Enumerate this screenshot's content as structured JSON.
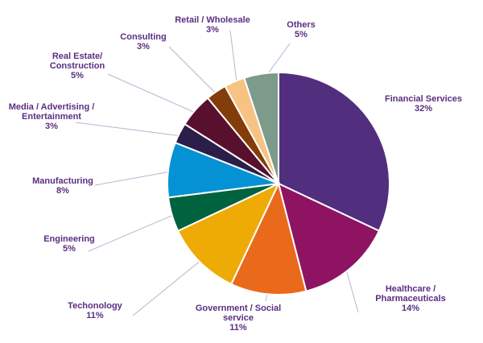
{
  "chart_data": {
    "type": "pie",
    "title": "",
    "slices": [
      {
        "label": "Financial Services",
        "display": [
          "Financial Services",
          "32%"
        ],
        "value": 32,
        "color": "#512e7e"
      },
      {
        "label": "Healthcare / Pharmaceuticals",
        "display": [
          "Healthcare /",
          "Pharmaceuticals",
          "14%"
        ],
        "value": 14,
        "color": "#8e1463"
      },
      {
        "label": "Government / Social service",
        "display": [
          "Government / Social",
          "service",
          "11%"
        ],
        "value": 11,
        "color": "#ea6a1b"
      },
      {
        "label": "Techonology",
        "display": [
          "Techonology",
          "11%"
        ],
        "value": 11,
        "color": "#eeab06"
      },
      {
        "label": "Engineering",
        "display": [
          "Engineering",
          "5%"
        ],
        "value": 5,
        "color": "#00633d"
      },
      {
        "label": "Manufacturing",
        "display": [
          "Manufacturing",
          "8%"
        ],
        "value": 8,
        "color": "#0592d4"
      },
      {
        "label": "Media / Advertising / Entertainment",
        "display": [
          "Media / Advertising  /",
          "Entertainment",
          "3%"
        ],
        "value": 3,
        "color": "#2b1e4a"
      },
      {
        "label": "Real Estate/ Construction",
        "display": [
          "Real Estate/",
          "Construction",
          "5%"
        ],
        "value": 5,
        "color": "#58102e"
      },
      {
        "label": "Consulting",
        "display": [
          "Consulting",
          "3%"
        ],
        "value": 3,
        "color": "#833d0a"
      },
      {
        "label": "Retail / Wholesale",
        "display": [
          "Retail / Wholesale",
          "3%"
        ],
        "value": 3,
        "color": "#f6c383"
      },
      {
        "label": "Others",
        "display": [
          "Others",
          "5%"
        ],
        "value": 5,
        "color": "#7c9b8b"
      }
    ]
  }
}
